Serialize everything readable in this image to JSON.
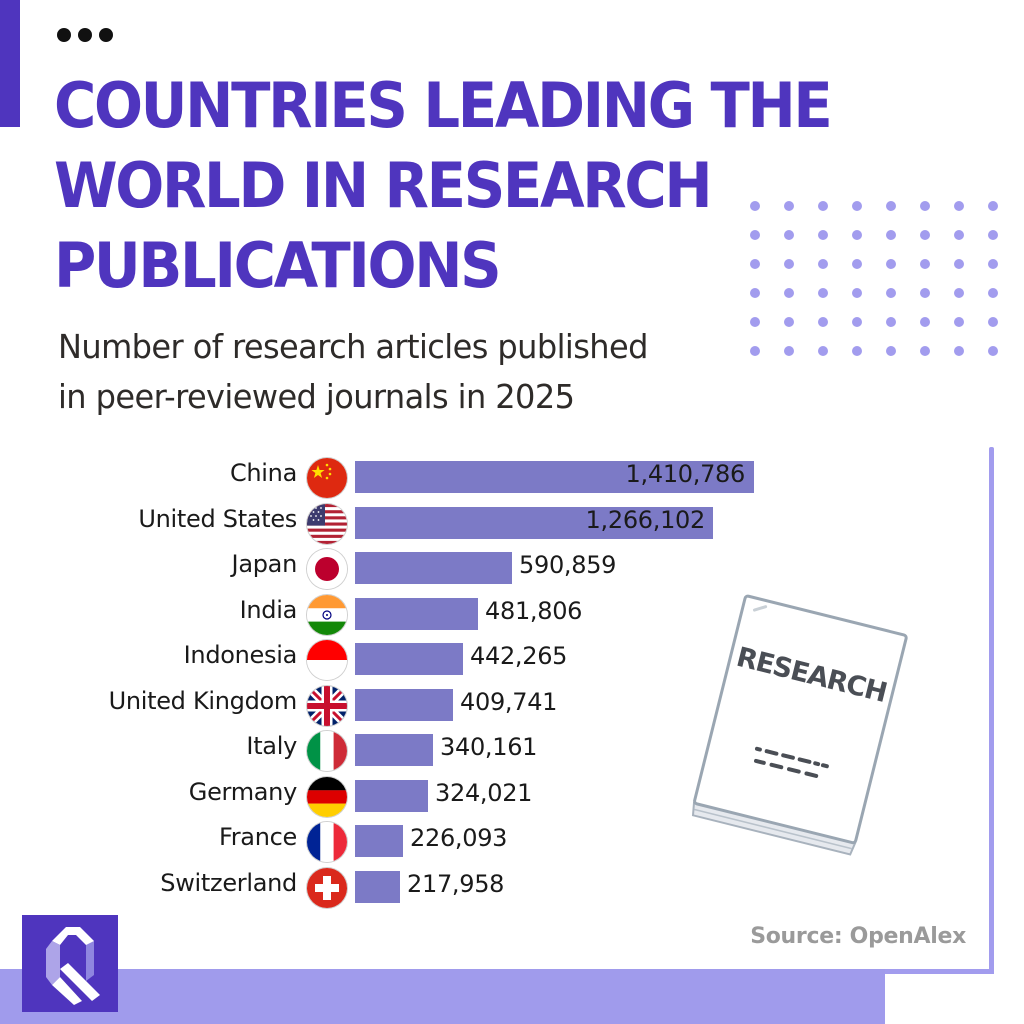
{
  "header": {
    "title": "COUNTRIES LEADING THE\nWORLD IN RESEARCH\nPUBLICATIONS",
    "subtitle": "Number of research articles published\nin peer-reviewed journals in 2025",
    "menu_icon": "ellipsis-icon"
  },
  "illustration": {
    "document_label": "RESEARCH",
    "icon": "research-paper-icon"
  },
  "footer": {
    "source": "Source: OpenAlex",
    "logo_icon": "q-logo-icon"
  },
  "colors": {
    "accent": "#4f35be",
    "bar": "#7c7ac6",
    "dots": "#a29cee",
    "band": "#a09bec",
    "source_text": "#9a9a9a"
  },
  "rows": [
    {
      "country": "China",
      "value_label": "1,410,786",
      "flag": "flag-china-icon"
    },
    {
      "country": "United States",
      "value_label": "1,266,102",
      "flag": "flag-usa-icon"
    },
    {
      "country": "Japan",
      "value_label": "590,859",
      "flag": "flag-japan-icon"
    },
    {
      "country": "India",
      "value_label": "481,806",
      "flag": "flag-india-icon"
    },
    {
      "country": "Indonesia",
      "value_label": "442,265",
      "flag": "flag-indonesia-icon"
    },
    {
      "country": "United Kingdom",
      "value_label": "409,741",
      "flag": "flag-uk-icon"
    },
    {
      "country": "Italy",
      "value_label": "340,161",
      "flag": "flag-italy-icon"
    },
    {
      "country": "Germany",
      "value_label": "324,021",
      "flag": "flag-germany-icon"
    },
    {
      "country": "France",
      "value_label": "226,093",
      "flag": "flag-france-icon"
    },
    {
      "country": "Switzerland",
      "value_label": "217,958",
      "flag": "flag-switzerland-icon"
    }
  ],
  "chart_data": {
    "type": "bar",
    "orientation": "horizontal",
    "title": "Countries Leading the World in Research Publications",
    "subtitle": "Number of research articles published in peer-reviewed journals in 2025",
    "categories": [
      "China",
      "United States",
      "Japan",
      "India",
      "Indonesia",
      "United Kingdom",
      "Italy",
      "Germany",
      "France",
      "Switzerland"
    ],
    "values": [
      1410786,
      1266102,
      590859,
      481806,
      442265,
      409741,
      340161,
      324021,
      226093,
      217958
    ],
    "xlabel": "",
    "ylabel": "",
    "data_labels": true,
    "grid": false,
    "legend": null,
    "source": "OpenAlex"
  }
}
